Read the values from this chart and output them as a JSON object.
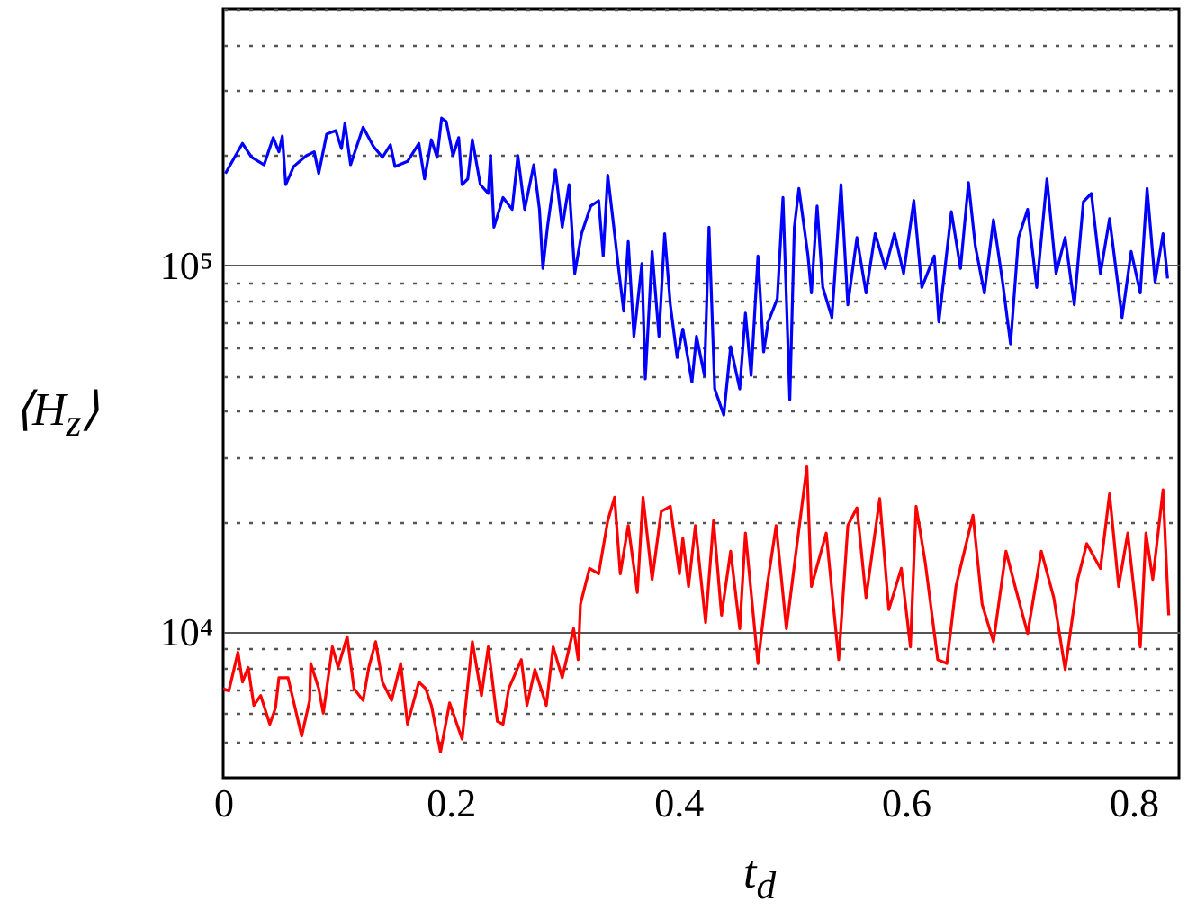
{
  "chart_data": {
    "type": "line",
    "xlabel": "t$_{d}$",
    "ylabel": "⟨H$_{z}$⟩",
    "log": "y",
    "grid": "y",
    "xlim": [
      0,
      0.84
    ],
    "xticks": [
      0,
      0.2,
      0.4,
      0.6,
      0.8
    ],
    "ylim": [
      4000,
      500000
    ],
    "yticks": [
      {
        "value": 5000,
        "label": null
      },
      {
        "value": 6000,
        "label": null
      },
      {
        "value": 7000,
        "label": null
      },
      {
        "value": 8000,
        "label": null
      },
      {
        "value": 9000,
        "label": null
      },
      {
        "value": 10000,
        "label": "10⁴"
      },
      {
        "value": 20000,
        "label": null
      },
      {
        "value": 30000,
        "label": null
      },
      {
        "value": 40000,
        "label": null
      },
      {
        "value": 50000,
        "label": null
      },
      {
        "value": 60000,
        "label": null
      },
      {
        "value": 70000,
        "label": null
      },
      {
        "value": 80000,
        "label": null
      },
      {
        "value": 90000,
        "label": null
      },
      {
        "value": 100000,
        "label": "10⁵"
      },
      {
        "value": 200000,
        "label": null
      },
      {
        "value": 300000,
        "label": null
      },
      {
        "value": 400000,
        "label": null
      },
      {
        "value": 500000,
        "label": null
      }
    ],
    "series": [
      {
        "color": "#0000ff",
        "x": [
          0.002,
          0.017,
          0.025,
          0.036,
          0.044,
          0.049,
          0.052,
          0.055,
          0.062,
          0.073,
          0.08,
          0.084,
          0.091,
          0.099,
          0.104,
          0.107,
          0.112,
          0.123,
          0.132,
          0.14,
          0.147,
          0.151,
          0.162,
          0.172,
          0.177,
          0.183,
          0.188,
          0.192,
          0.196,
          0.202,
          0.207,
          0.21,
          0.215,
          0.219,
          0.226,
          0.233,
          0.235,
          0.238,
          0.246,
          0.254,
          0.259,
          0.265,
          0.273,
          0.278,
          0.281,
          0.285,
          0.292,
          0.298,
          0.304,
          0.309,
          0.315,
          0.323,
          0.33,
          0.334,
          0.338,
          0.344,
          0.347,
          0.352,
          0.356,
          0.361,
          0.368,
          0.371,
          0.377,
          0.383,
          0.388,
          0.393,
          0.399,
          0.404,
          0.412,
          0.416,
          0.423,
          0.427,
          0.432,
          0.44,
          0.446,
          0.454,
          0.459,
          0.464,
          0.47,
          0.475,
          0.479,
          0.487,
          0.492,
          0.498,
          0.502,
          0.506,
          0.514,
          0.517,
          0.522,
          0.527,
          0.535,
          0.543,
          0.549,
          0.557,
          0.565,
          0.573,
          0.582,
          0.59,
          0.598,
          0.607,
          0.614,
          0.625,
          0.629,
          0.64,
          0.648,
          0.655,
          0.661,
          0.669,
          0.677,
          0.685,
          0.692,
          0.699,
          0.707,
          0.715,
          0.724,
          0.732,
          0.74,
          0.748,
          0.756,
          0.763,
          0.771,
          0.779,
          0.79,
          0.798,
          0.806,
          0.812,
          0.819,
          0.826,
          0.83
        ],
        "values": [
          178000,
          215000,
          197000,
          188000,
          223000,
          204000,
          225000,
          166000,
          186000,
          199000,
          204000,
          178000,
          228000,
          233000,
          208000,
          244000,
          188000,
          238000,
          211000,
          197000,
          213000,
          186000,
          192000,
          215000,
          172000,
          220000,
          197000,
          252000,
          247000,
          199000,
          223000,
          166000,
          172000,
          220000,
          166000,
          157000,
          199000,
          127000,
          153000,
          142000,
          199000,
          142000,
          188000,
          142000,
          98000,
          127000,
          182000,
          127000,
          166000,
          95000,
          122000,
          145000,
          150000,
          106000,
          176000,
          122000,
          101000,
          75000,
          116000,
          64000,
          101000,
          49000,
          109000,
          64000,
          122000,
          78000,
          56000,
          67000,
          48000,
          64000,
          50000,
          127000,
          46000,
          39000,
          60000,
          46000,
          74000,
          50000,
          106000,
          58000,
          70000,
          81000,
          153000,
          43000,
          127000,
          162000,
          106000,
          84000,
          145000,
          87000,
          72000,
          166000,
          78000,
          119000,
          84000,
          122000,
          98000,
          122000,
          95000,
          150000,
          87000,
          106000,
          70000,
          140000,
          98000,
          168000,
          113000,
          84000,
          133000,
          90000,
          61000,
          119000,
          142000,
          87000,
          172000,
          95000,
          119000,
          78000,
          149000,
          157000,
          95000,
          134000,
          72000,
          109000,
          84000,
          162000,
          90000,
          122000,
          92000
        ]
      },
      {
        "color": "#ff0000",
        "x": [
          0,
          0.005,
          0.013,
          0.017,
          0.022,
          0.027,
          0.033,
          0.041,
          0.046,
          0.049,
          0.057,
          0.069,
          0.076,
          0.077,
          0.084,
          0.088,
          0.096,
          0.101,
          0.109,
          0.115,
          0.123,
          0.128,
          0.134,
          0.14,
          0.148,
          0.156,
          0.162,
          0.172,
          0.178,
          0.183,
          0.191,
          0.199,
          0.21,
          0.219,
          0.227,
          0.233,
          0.241,
          0.246,
          0.251,
          0.262,
          0.267,
          0.274,
          0.284,
          0.29,
          0.298,
          0.308,
          0.312,
          0.314,
          0.322,
          0.33,
          0.338,
          0.344,
          0.349,
          0.356,
          0.364,
          0.369,
          0.377,
          0.385,
          0.393,
          0.401,
          0.404,
          0.409,
          0.415,
          0.424,
          0.431,
          0.438,
          0.446,
          0.454,
          0.459,
          0.47,
          0.478,
          0.486,
          0.495,
          0.503,
          0.513,
          0.517,
          0.53,
          0.541,
          0.549,
          0.557,
          0.565,
          0.577,
          0.585,
          0.596,
          0.604,
          0.609,
          0.617,
          0.628,
          0.636,
          0.644,
          0.659,
          0.667,
          0.677,
          0.688,
          0.696,
          0.707,
          0.719,
          0.73,
          0.74,
          0.751,
          0.759,
          0.771,
          0.779,
          0.787,
          0.795,
          0.806,
          0.811,
          0.817,
          0.826,
          0.831
        ],
        "values": [
          7000,
          6900,
          8800,
          7300,
          8000,
          6300,
          6700,
          5600,
          6200,
          7500,
          7500,
          5200,
          6500,
          8200,
          7000,
          6000,
          9100,
          8000,
          9700,
          7000,
          6500,
          8000,
          9400,
          7300,
          6500,
          8200,
          5600,
          7300,
          7000,
          6300,
          4700,
          6400,
          5100,
          9400,
          6700,
          9100,
          5700,
          5600,
          7000,
          8400,
          6300,
          7900,
          6300,
          9100,
          7500,
          10200,
          8400,
          11900,
          14900,
          14400,
          20100,
          23300,
          14400,
          19500,
          12800,
          23300,
          13900,
          21300,
          22000,
          14400,
          18000,
          13300,
          19500,
          10600,
          20100,
          11100,
          16600,
          10200,
          18600,
          8200,
          13300,
          19500,
          10200,
          16100,
          28200,
          13300,
          18600,
          8400,
          19500,
          21800,
          12400,
          23100,
          11500,
          14900,
          9100,
          22000,
          15500,
          8400,
          8200,
          13300,
          20800,
          11900,
          9400,
          16600,
          13300,
          9900,
          16600,
          12400,
          7900,
          13900,
          17400,
          14900,
          23800,
          13300,
          18600,
          9100,
          18600,
          13900,
          24400,
          11100
        ]
      }
    ]
  }
}
